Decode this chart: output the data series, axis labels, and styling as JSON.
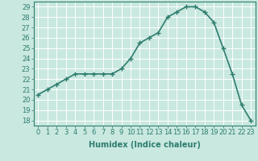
{
  "x": [
    0,
    1,
    2,
    3,
    4,
    5,
    6,
    7,
    8,
    9,
    10,
    11,
    12,
    13,
    14,
    15,
    16,
    17,
    18,
    19,
    20,
    21,
    22,
    23
  ],
  "y": [
    20.5,
    21.0,
    21.5,
    22.0,
    22.5,
    22.5,
    22.5,
    22.5,
    22.5,
    23.0,
    24.0,
    25.5,
    26.0,
    26.5,
    28.0,
    28.5,
    29.0,
    29.0,
    28.5,
    27.5,
    25.0,
    22.5,
    19.5,
    18.0
  ],
  "line_color": "#2e7d6e",
  "marker": "+",
  "marker_size": 4,
  "marker_lw": 1.0,
  "bg_color": "#c9e8e0",
  "grid_color": "#ffffff",
  "xlabel": "Humidex (Indice chaleur)",
  "ylim": [
    17.5,
    29.5
  ],
  "xlim": [
    -0.5,
    23.5
  ],
  "yticks": [
    18,
    19,
    20,
    21,
    22,
    23,
    24,
    25,
    26,
    27,
    28,
    29
  ],
  "xticks": [
    0,
    1,
    2,
    3,
    4,
    5,
    6,
    7,
    8,
    9,
    10,
    11,
    12,
    13,
    14,
    15,
    16,
    17,
    18,
    19,
    20,
    21,
    22,
    23
  ],
  "line_width": 1.2,
  "label_fontsize": 7,
  "tick_fontsize": 6
}
